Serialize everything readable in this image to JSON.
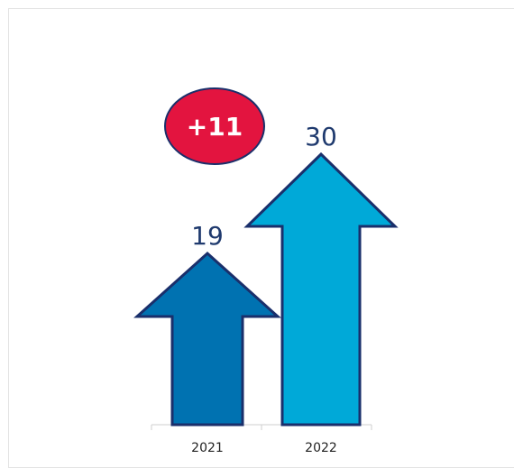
{
  "chart_data": {
    "type": "bar",
    "title": "",
    "xlabel": "",
    "ylabel": "",
    "categories": [
      "2021",
      "2022"
    ],
    "values": [
      19,
      30
    ],
    "data_labels": [
      "19",
      "30"
    ],
    "difference_badge": "+11",
    "colors": {
      "bar_2021": "#0072b1",
      "bar_2022": "#00a9d8",
      "outline": "#1a2f6b",
      "badge_fill": "#e3143f",
      "badge_outline": "#1a2f6b",
      "label_text": "#1f3a6e"
    },
    "mark_shape": "up-arrow"
  }
}
